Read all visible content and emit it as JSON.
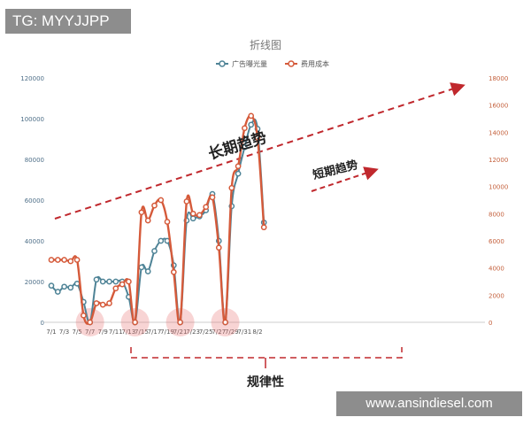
{
  "overlay": {
    "tag_text": "TG: MYYJJPP",
    "watermark_text": "www.ansindiesel.com"
  },
  "chart_data": {
    "type": "line",
    "title": "折线图",
    "categories": [
      "7/1",
      "7/2",
      "7/3",
      "7/4",
      "7/5",
      "7/6",
      "7/7",
      "7/8",
      "7/9",
      "7/10",
      "7/11",
      "7/12",
      "7/13",
      "7/14",
      "7/15",
      "7/16",
      "7/17",
      "7/18",
      "7/19",
      "7/20",
      "7/21",
      "7/22",
      "7/23",
      "7/24",
      "7/25",
      "7/26",
      "7/27",
      "7/28",
      "7/29",
      "7/30",
      "7/31",
      "8/1",
      "8/2",
      "8/3"
    ],
    "tick_labels": [
      "7/1",
      "7/3",
      "7/5",
      "7/7",
      "7/9",
      "7/11",
      "7/13",
      "7/15",
      "7/17",
      "7/19",
      "7/21",
      "7/23",
      "7/25",
      "7/27",
      "7/29",
      "7/31",
      "8/2"
    ],
    "series": [
      {
        "name": "广告曝光量",
        "axis": "left",
        "color": "#4e8396",
        "values": [
          18000,
          15000,
          17500,
          17000,
          19000,
          10000,
          0,
          21000,
          20000,
          20000,
          20000,
          20000,
          12500,
          0,
          27000,
          25000,
          35000,
          40000,
          40000,
          28000,
          0,
          50000,
          51000,
          52000,
          55000,
          63000,
          40000,
          0,
          57000,
          73000,
          86000,
          97000,
          95000,
          49000
        ]
      },
      {
        "name": "费用成本",
        "axis": "right",
        "color": "#d55a3a",
        "values": [
          4600,
          4600,
          4600,
          4500,
          4600,
          500,
          0,
          1400,
          1300,
          1400,
          2500,
          2800,
          3000,
          0,
          8100,
          7500,
          8600,
          9000,
          7400,
          3700,
          0,
          8900,
          8000,
          7900,
          8500,
          9200,
          5500,
          0,
          9900,
          11500,
          14300,
          15200,
          13600,
          7000
        ]
      }
    ],
    "y_left": {
      "min": 0,
      "max": 120000,
      "ticks": [
        "0",
        "20000",
        "40000",
        "60000",
        "80000",
        "100000",
        "120000"
      ]
    },
    "y_right": {
      "min": 0,
      "max": 18000,
      "ticks": [
        "0",
        "2000",
        "4000",
        "6000",
        "8000",
        "10000",
        "12000",
        "14000",
        "16000",
        "18000"
      ]
    },
    "legend_placement": "top-center",
    "grid": false,
    "annotations": {
      "long_trend": "长期趋势",
      "short_trend": "短期趋势",
      "regularity": "规律性",
      "highlight_dates": [
        "7/7",
        "7/14",
        "7/21",
        "7/28"
      ]
    }
  }
}
